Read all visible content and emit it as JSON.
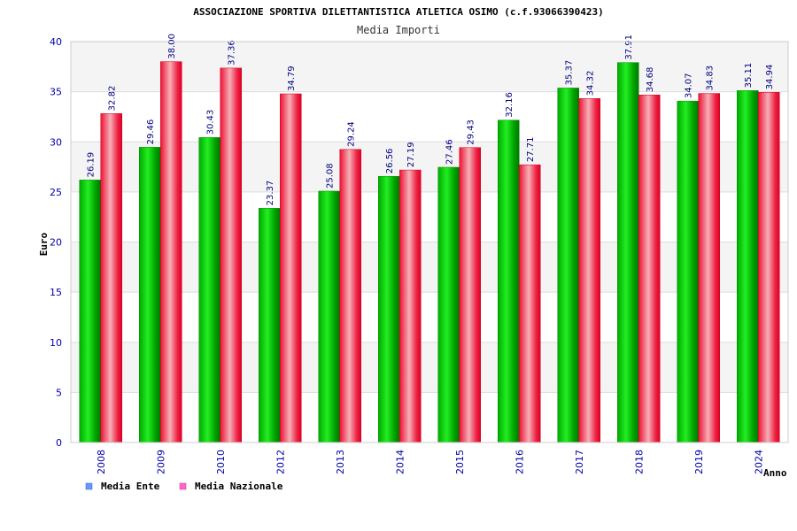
{
  "chart_data": {
    "type": "bar",
    "title": "ASSOCIAZIONE SPORTIVA DILETTANTISTICA ATLETICA OSIMO (c.f.93066390423)",
    "subtitle": "Media Importi",
    "xlabel": "Anno",
    "ylabel": "Euro",
    "ylim": [
      0,
      40
    ],
    "yticks": [
      0,
      5,
      10,
      15,
      20,
      25,
      30,
      35,
      40
    ],
    "categories": [
      "2008",
      "2009",
      "2010",
      "2012",
      "2013",
      "2014",
      "2015",
      "2016",
      "2017",
      "2018",
      "2019",
      "2024"
    ],
    "series": [
      {
        "name": "Media Ente",
        "values": [
          26.19,
          29.46,
          30.43,
          23.37,
          25.08,
          26.56,
          27.46,
          32.16,
          35.37,
          37.91,
          34.07,
          35.11
        ],
        "labels": [
          "26.19",
          "29.46",
          "30.43",
          "23.37",
          "25.08",
          "26.56",
          "27.46",
          "32.16",
          "35.37",
          "37.91",
          "34.07",
          "35.11"
        ]
      },
      {
        "name": "Media Nazionale",
        "values": [
          32.82,
          38.0,
          37.36,
          34.79,
          29.24,
          27.19,
          29.43,
          27.71,
          34.32,
          34.68,
          34.83,
          34.94
        ],
        "labels": [
          "32.82",
          "38.00",
          "37.36",
          "34.79",
          "29.24",
          "27.19",
          "29.43",
          "27.71",
          "34.32",
          "34.68",
          "34.83",
          "34.94"
        ]
      }
    ],
    "legend": [
      {
        "name": "Media Ente",
        "color": "#6699ff"
      },
      {
        "name": "Media Nazionale",
        "color": "#ff66cc"
      }
    ],
    "grid": true,
    "legend_position": "bottom-left"
  }
}
